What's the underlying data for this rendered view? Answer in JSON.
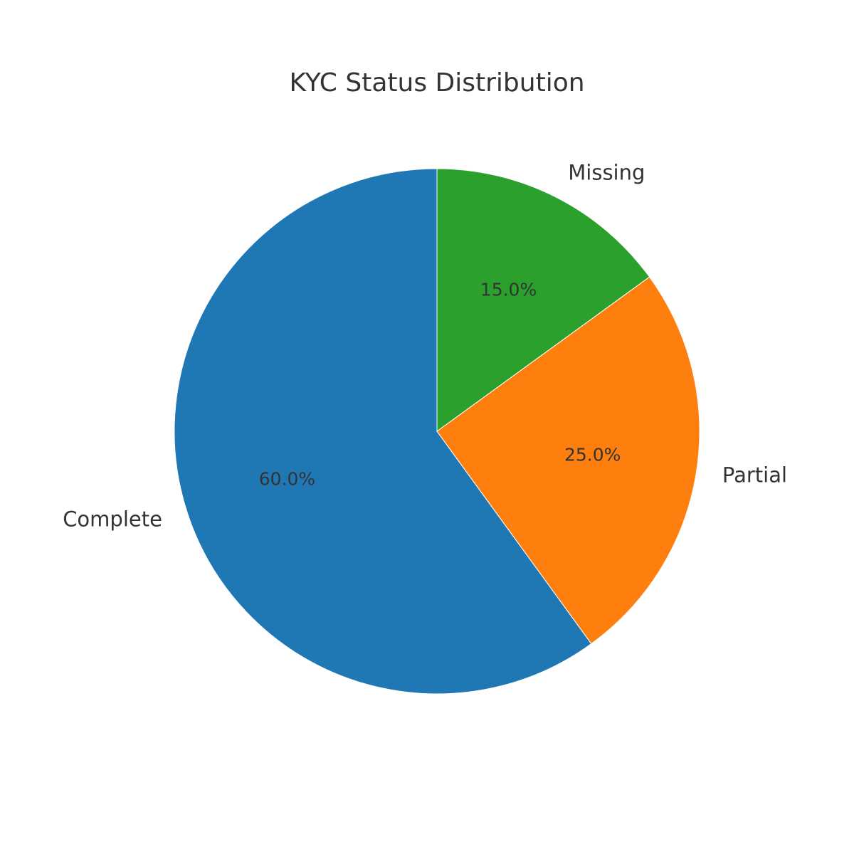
{
  "chart_data": {
    "type": "pie",
    "title": "KYC Status Distribution",
    "start_angle": "top, counter-clockwise",
    "slices": [
      {
        "label": "Complete",
        "value": 60.0,
        "pct_label": "60.0%",
        "color": "#1f77b4"
      },
      {
        "label": "Partial",
        "value": 25.0,
        "pct_label": "25.0%",
        "color": "#ff7f0e"
      },
      {
        "label": "Missing",
        "value": 15.0,
        "pct_label": "15.0%",
        "color": "#2ca02c"
      }
    ]
  }
}
